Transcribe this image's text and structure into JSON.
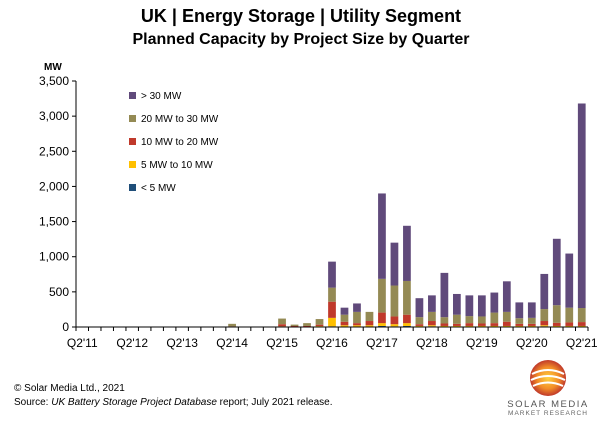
{
  "title": "UK | Energy Storage | Utility Segment",
  "subtitle": "Planned Capacity by Project Size by Quarter",
  "footer": {
    "copyright": "© Solar Media Ltd., 2021",
    "source_prefix": "Source: ",
    "source_italic": "UK Battery Storage Project Database",
    "source_suffix": " report; July 2021 release."
  },
  "logo": {
    "name": "SOLAR MEDIA",
    "sub": "MARKET RESEARCH"
  },
  "colors": {
    "gt30": "#604a7b",
    "20to30": "#948a54",
    "10to20": "#c0392b",
    "5to10": "#ffc000",
    "lt5": "#1f4e79"
  },
  "chart_data": {
    "type": "bar",
    "stacked": true,
    "ylabel": "MW",
    "ylim": [
      0,
      3500
    ],
    "yticks": [
      0,
      500,
      1000,
      1500,
      2000,
      2500,
      3000,
      3500
    ],
    "ytick_labels": [
      "0",
      "500",
      "1,000",
      "1,500",
      "2,000",
      "2,500",
      "3,000",
      "3,500"
    ],
    "x_labels": [
      "Q2'11",
      "Q2'12",
      "Q2'13",
      "Q2'14",
      "Q2'15",
      "Q2'16",
      "Q2'17",
      "Q2'18",
      "Q2'19",
      "Q2'20",
      "Q2'21"
    ],
    "x_label_every": 4,
    "categories": [
      "Q2'11",
      "Q3'11",
      "Q4'11",
      "Q1'12",
      "Q2'12",
      "Q3'12",
      "Q4'12",
      "Q1'13",
      "Q2'13",
      "Q3'13",
      "Q4'13",
      "Q1'14",
      "Q2'14",
      "Q3'14",
      "Q4'14",
      "Q1'15",
      "Q2'15",
      "Q3'15",
      "Q4'15",
      "Q1'16",
      "Q2'16",
      "Q3'16",
      "Q4'16",
      "Q1'17",
      "Q2'17",
      "Q3'17",
      "Q4'17",
      "Q1'18",
      "Q2'18",
      "Q3'18",
      "Q4'18",
      "Q1'19",
      "Q2'19",
      "Q3'19",
      "Q4'19",
      "Q1'20",
      "Q2'20",
      "Q3'20",
      "Q4'20",
      "Q1'21",
      "Q2'21"
    ],
    "legend_position": "top-left",
    "series": [
      {
        "name": "< 5 MW",
        "color": "#1f4e79",
        "values": [
          0,
          0,
          0,
          0,
          0,
          0,
          0,
          0,
          0,
          0,
          0,
          0,
          0,
          0,
          0,
          0,
          0,
          2,
          0,
          3,
          10,
          5,
          5,
          5,
          15,
          10,
          15,
          5,
          10,
          5,
          5,
          5,
          5,
          5,
          5,
          5,
          5,
          10,
          5,
          5,
          5
        ]
      },
      {
        "name": "5 MW to 10 MW",
        "color": "#ffc000",
        "values": [
          0,
          0,
          0,
          0,
          0,
          0,
          0,
          0,
          0,
          0,
          0,
          0,
          0,
          0,
          0,
          0,
          10,
          2,
          5,
          10,
          120,
          20,
          20,
          20,
          40,
          30,
          40,
          10,
          15,
          10,
          10,
          10,
          10,
          10,
          10,
          10,
          10,
          15,
          10,
          10,
          10
        ]
      },
      {
        "name": "10 MW to 20 MW",
        "color": "#c0392b",
        "values": [
          0,
          0,
          0,
          0,
          0,
          0,
          0,
          0,
          0,
          0,
          0,
          0,
          10,
          0,
          0,
          0,
          30,
          10,
          10,
          20,
          230,
          50,
          30,
          60,
          150,
          110,
          120,
          25,
          60,
          35,
          30,
          40,
          35,
          40,
          60,
          30,
          30,
          60,
          45,
          50,
          55
        ]
      },
      {
        "name": "20 MW to 30 MW",
        "color": "#948a54",
        "values": [
          0,
          0,
          0,
          0,
          5,
          0,
          0,
          0,
          0,
          0,
          0,
          0,
          35,
          0,
          0,
          0,
          80,
          20,
          40,
          80,
          200,
          100,
          160,
          130,
          480,
          440,
          480,
          100,
          130,
          90,
          130,
          100,
          100,
          150,
          140,
          80,
          85,
          170,
          250,
          210,
          200
        ]
      },
      {
        "name": "> 30 MW",
        "color": "#604a7b",
        "values": [
          0,
          0,
          0,
          0,
          0,
          0,
          0,
          0,
          0,
          0,
          0,
          0,
          0,
          0,
          0,
          0,
          0,
          0,
          0,
          0,
          370,
          100,
          120,
          0,
          1215,
          610,
          785,
          270,
          235,
          630,
          295,
          295,
          300,
          285,
          435,
          225,
          220,
          500,
          945,
          770,
          2910
        ]
      }
    ],
    "grid": false
  }
}
